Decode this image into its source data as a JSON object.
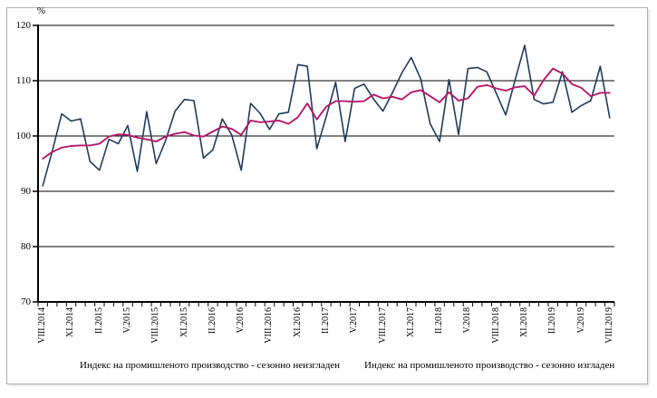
{
  "figure": {
    "percent_label": "%"
  },
  "legend": {
    "unadjusted": "Индекс на промишленото производство - сезонно неизгладен",
    "adjusted": "Индекс на промишленото производство - сезонно изгладен"
  },
  "colors": {
    "unadjusted_line": "#1f3a5c",
    "adjusted_line": "#b5186b",
    "grid": "#000000",
    "frame_border": "#b0b0b0"
  },
  "chart_data": {
    "type": "line",
    "title": "",
    "xlabel": "",
    "ylabel": "%",
    "ylim": [
      70,
      120
    ],
    "yticks": [
      70,
      80,
      90,
      100,
      110,
      120
    ],
    "grid": "horizontal",
    "legend_position": "bottom",
    "x_label_every": 3,
    "categories": [
      "VIII.2014",
      "IX.2014",
      "X.2014",
      "XI.2014",
      "XII.2014",
      "I.2015",
      "II.2015",
      "III.2015",
      "IV.2015",
      "V.2015",
      "VI.2015",
      "VII.2015",
      "VIII.2015",
      "IX.2015",
      "X.2015",
      "XI.2015",
      "XII.2015",
      "I.2016",
      "II.2016",
      "III.2016",
      "IV.2016",
      "V.2016",
      "VI.2016",
      "VII.2016",
      "VIII.2016",
      "IX.2016",
      "X.2016",
      "XI.2016",
      "XII.2016",
      "I.2017",
      "II.2017",
      "III.2017",
      "IV.2017",
      "V.2017",
      "VI.2017",
      "VII.2017",
      "VIII.2017",
      "IX.2017",
      "X.2017",
      "XI.2017",
      "XII.2017",
      "I.2018",
      "II.2018",
      "III.2018",
      "IV.2018",
      "V.2018",
      "VI.2018",
      "VII.2018",
      "VIII.2018",
      "IX.2018",
      "X.2018",
      "XI.2018",
      "XII.2018",
      "I.2019",
      "II.2019",
      "III.2019",
      "IV.2019",
      "V.2019",
      "VI.2019",
      "VII.2019",
      "VIII.2019"
    ],
    "series": [
      {
        "name": "Индекс на промишленото производство - сезонно неизгладен",
        "color": "#1f3a5c",
        "values": [
          91.0,
          97.2,
          104.0,
          102.7,
          103.1,
          95.4,
          93.8,
          99.4,
          98.6,
          101.9,
          93.6,
          104.4,
          95.0,
          99.2,
          104.5,
          106.6,
          106.4,
          96.0,
          97.5,
          103.1,
          100.2,
          93.8,
          105.9,
          104.1,
          101.2,
          104.0,
          104.3,
          112.9,
          112.6,
          97.7,
          103.5,
          109.7,
          99.0,
          108.6,
          109.4,
          106.7,
          104.5,
          107.8,
          111.4,
          114.2,
          110.3,
          102.2,
          99.0,
          110.2,
          100.3,
          112.2,
          112.4,
          111.6,
          107.7,
          103.8,
          110.2,
          116.4,
          106.6,
          105.8,
          106.1,
          111.6,
          104.3,
          105.5,
          106.4,
          112.6,
          103.3
        ]
      },
      {
        "name": "Индекс на промишленото производство - сезонно изгладен",
        "color": "#b5186b",
        "values": [
          95.9,
          97.1,
          97.9,
          98.2,
          98.3,
          98.3,
          98.6,
          99.9,
          100.3,
          100.2,
          99.7,
          99.4,
          99.0,
          99.9,
          100.4,
          100.7,
          100.1,
          99.9,
          100.8,
          101.7,
          101.3,
          100.2,
          102.8,
          102.5,
          102.6,
          102.8,
          102.2,
          103.4,
          105.9,
          103.0,
          105.3,
          106.3,
          106.3,
          106.2,
          106.3,
          107.5,
          106.8,
          107.1,
          106.6,
          107.9,
          108.3,
          107.2,
          106.1,
          107.9,
          106.4,
          106.8,
          108.9,
          109.2,
          108.6,
          108.2,
          108.8,
          109.0,
          107.3,
          110.1,
          112.2,
          111.3,
          109.4,
          108.7,
          107.2,
          107.8,
          107.8
        ]
      }
    ]
  }
}
